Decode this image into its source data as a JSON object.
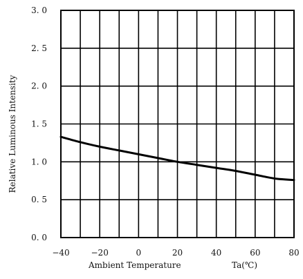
{
  "chart_data": {
    "type": "line",
    "title": "",
    "xlabel": "Ambient Temperature",
    "xlabel_unit": "Ta(℃)",
    "ylabel": "Relative Luminous Intensity",
    "xlim": [
      -40,
      80
    ],
    "ylim": [
      0,
      3.0
    ],
    "x_ticks": [
      -40,
      -20,
      0,
      20,
      40,
      60,
      80
    ],
    "x_tick_labels": [
      "−40",
      "−20",
      "0",
      "20",
      "40",
      "60",
      "80"
    ],
    "y_ticks": [
      0,
      0.5,
      1.0,
      1.5,
      2.0,
      2.5,
      3.0
    ],
    "y_tick_labels": [
      "0. 0",
      "0. 5",
      "1. 0",
      "1. 5",
      "2. 0",
      "2. 5",
      "3. 0"
    ],
    "x_grid_step": 10,
    "y_grid_step": 0.5,
    "grid": true,
    "legend": "none",
    "series": [
      {
        "x": [
          -40,
          -30,
          -20,
          -10,
          0,
          10,
          20,
          30,
          40,
          50,
          60,
          70,
          80
        ],
        "y": [
          1.33,
          1.26,
          1.2,
          1.15,
          1.1,
          1.05,
          1.0,
          0.96,
          0.92,
          0.88,
          0.83,
          0.78,
          0.76
        ]
      }
    ],
    "colors": {
      "line": "#000000",
      "grid": "#000000",
      "background": "#ffffff"
    }
  }
}
